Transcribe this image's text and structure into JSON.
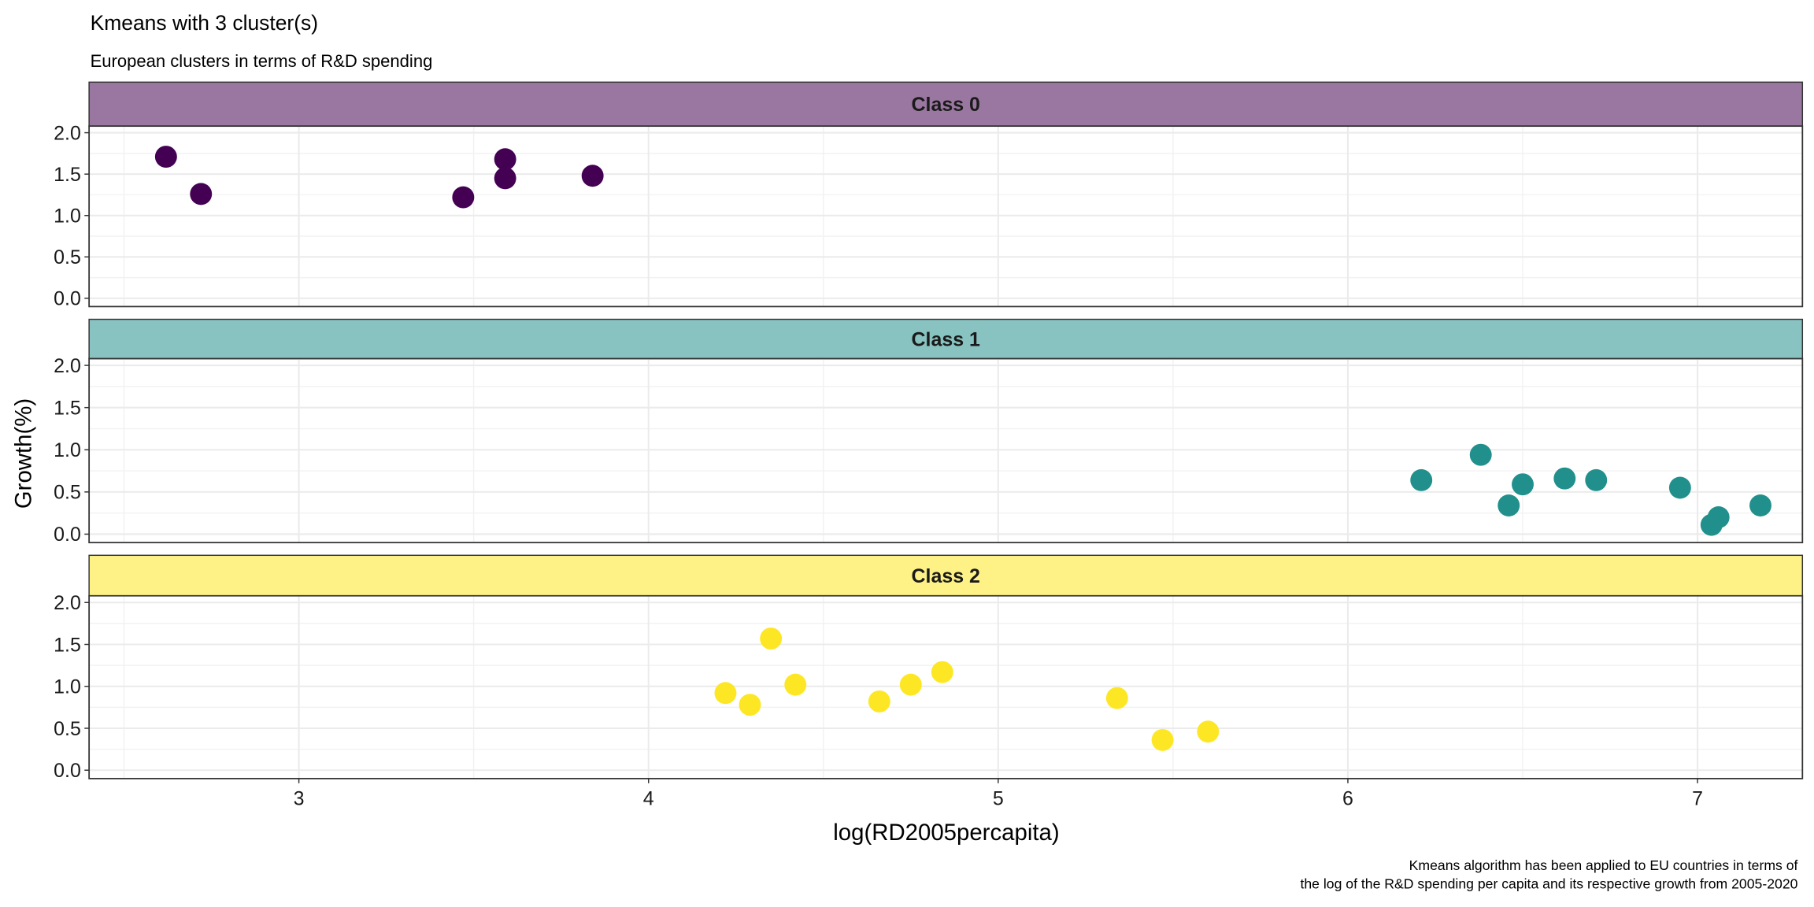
{
  "chart_data": {
    "type": "scatter",
    "title": "Kmeans with 3 cluster(s)",
    "subtitle": "European clusters in terms of R&D spending",
    "xlabel": "log(RD2005percapita)",
    "ylabel": "Growth(%)",
    "caption": [
      "Kmeans algorithm has been applied to EU countries in terms of",
      "the log of the R&D spending per capita and its respective growth from 2005-2020"
    ],
    "xlim": [
      2.4,
      7.3
    ],
    "ylim": [
      -0.1,
      2.08
    ],
    "xticks": [
      "3",
      "4",
      "5",
      "6",
      "7"
    ],
    "yticks": [
      "0.0",
      "0.5",
      "1.0",
      "1.5",
      "2.0"
    ],
    "grid": true,
    "legend": "none",
    "facets": [
      {
        "label": "Class 0",
        "color": "#440154",
        "strip_color": "#9A77A0",
        "x": [
          2.62,
          2.72,
          3.47,
          3.59,
          3.59,
          3.84
        ],
        "y": [
          1.71,
          1.26,
          1.22,
          1.68,
          1.45,
          1.48
        ]
      },
      {
        "label": "Class 1",
        "color": "#21908C",
        "strip_color": "#88C3C1",
        "x": [
          6.21,
          6.38,
          6.46,
          6.5,
          6.62,
          6.71,
          6.95,
          7.04,
          7.06,
          7.18
        ],
        "y": [
          0.64,
          0.94,
          0.34,
          0.59,
          0.66,
          0.64,
          0.55,
          0.11,
          0.2,
          0.34
        ]
      },
      {
        "label": "Class 2",
        "color": "#FDE725",
        "strip_color": "#FEF287",
        "x": [
          4.22,
          4.29,
          4.35,
          4.42,
          4.66,
          4.75,
          4.84,
          5.34,
          5.47,
          5.6
        ],
        "y": [
          0.92,
          0.78,
          1.57,
          1.02,
          0.82,
          1.02,
          1.17,
          0.86,
          0.36,
          0.46
        ]
      }
    ]
  }
}
